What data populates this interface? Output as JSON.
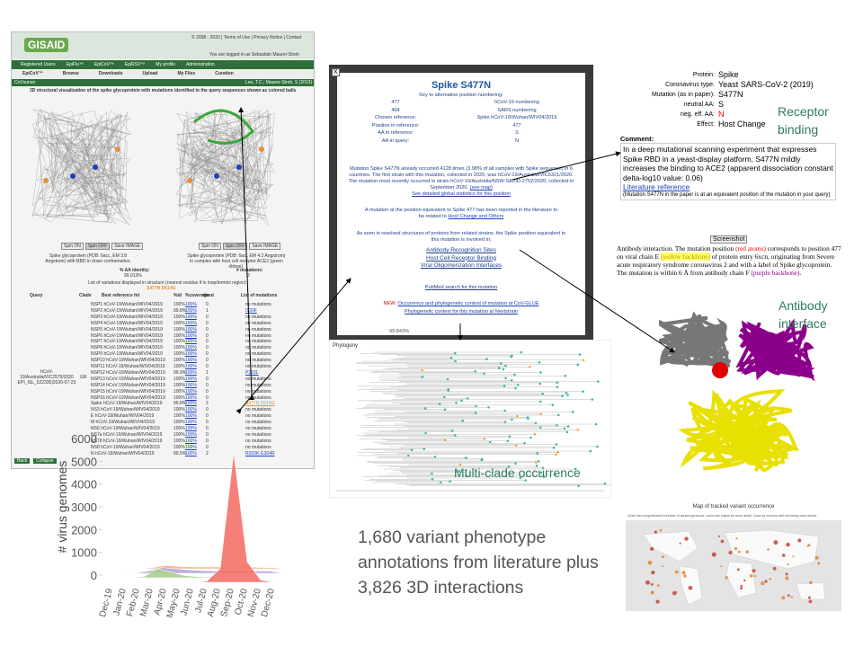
{
  "gisaid": {
    "logo": "GISAID",
    "toplinks": "© 2008 - 2020 | Terms of Use | Privacy Notice | Contact",
    "login": "You are logged in as Sebastian Maurer-Stroh",
    "nav": [
      "Registered Users",
      "EpiFlu™",
      "EpiCoV™",
      "EpiRSV™",
      "My profile",
      "Administration"
    ],
    "subnav": [
      "EpiCoV™",
      "Browse",
      "Downloads",
      "Upload",
      "My Files",
      "Curation"
    ],
    "app": "CoVsurver",
    "credit": "Lee, T.C.; Maurer-Stroh, S (2013)",
    "heading": "3D structural visualization of the spike glycoprotein with mutations identified in the query sequences shown as colored balls",
    "buttons": [
      "Spin ON",
      "Spin OFF",
      "Save IMAGE"
    ],
    "captions": [
      "Spike glycoprotein (PDB: 6acc, EM 3.8 Angstrom) with RBD in down conformation.",
      "Spike glycoprotein (PDB: 6acj, EM 4.2 Angstrom) in complex with host cell receptor ACE2 (green ribbon)."
    ],
    "identity_label": "% AA identity:",
    "identity": "99.913%",
    "mutations_label": "# mutations:",
    "mutations_count": "2",
    "variants_heading": "List of variations displayed in structure (nearest residue if in loop/termini region)",
    "variants": "S477N D614G",
    "columns": [
      "Query",
      "Clade",
      "Best reference hit",
      "%id",
      "%coverage",
      "#mut",
      "List of mutations"
    ],
    "query": "hCoV-19/Australia/VIC2575/2020 EPI_ISL_522335|2020-07-23",
    "clade": "GR",
    "rows": [
      [
        "NSP1 hCoV-19/Wuhan/WIV04/2019",
        "100%",
        "100%",
        "0",
        "no mutations"
      ],
      [
        "NSP2 hCoV-19/Wuhan/WIV04/2019",
        "99.8%",
        "100%",
        "1",
        "I120F"
      ],
      [
        "NSP3 hCoV-19/Wuhan/WIV04/2019",
        "100%",
        "100%",
        "0",
        "no mutations"
      ],
      [
        "NSP4 hCoV-19/Wuhan/WIV04/2019",
        "100%",
        "100%",
        "0",
        "no mutations"
      ],
      [
        "NSP5 hCoV-19/Wuhan/WIV04/2019",
        "100%",
        "100%",
        "0",
        "no mutations"
      ],
      [
        "NSP6 hCoV-19/Wuhan/WIV04/2019",
        "100%",
        "100%",
        "0",
        "no mutations"
      ],
      [
        "NSP7 hCoV-19/Wuhan/WIV04/2019",
        "100%",
        "100%",
        "0",
        "no mutations"
      ],
      [
        "NSP8 hCoV-19/Wuhan/WIV04/2019",
        "100%",
        "100%",
        "0",
        "no mutations"
      ],
      [
        "NSP9 hCoV-19/Wuhan/WIV04/2019",
        "100%",
        "100%",
        "0",
        "no mutations"
      ],
      [
        "NSP10 hCoV-19/Wuhan/WIV04/2019",
        "100%",
        "100%",
        "0",
        "no mutations"
      ],
      [
        "NSP11 hCoV-19/Wuhan/WIV04/2019",
        "100%",
        "100%",
        "0",
        "no mutations"
      ],
      [
        "NSP12 hCoV-19/Wuhan/WIV04/2019",
        "99.9%",
        "100%",
        "1",
        "P323L"
      ],
      [
        "NSP13 hCoV-19/Wuhan/WIV04/2019",
        "100%",
        "100%",
        "0",
        "no mutations"
      ],
      [
        "NSP14 hCoV-19/Wuhan/WIV04/2019",
        "100%",
        "100%",
        "0",
        "no mutations"
      ],
      [
        "NSP15 hCoV-19/Wuhan/WIV04/2019",
        "100%",
        "100%",
        "0",
        "no mutations"
      ],
      [
        "NSP16 hCoV-19/Wuhan/WIV04/2019",
        "100%",
        "100%",
        "0",
        "no mutations"
      ],
      [
        "Spike hCoV-19/Wuhan/WIV04/2019",
        "99.8%",
        "100%",
        "2",
        "S477N D614G"
      ],
      [
        "NS3 hCoV-19/Wuhan/WIV04/2019",
        "100%",
        "100%",
        "0",
        "no mutations"
      ],
      [
        "E hCoV-19/Wuhan/WIV04/2019",
        "100%",
        "100%",
        "0",
        "no mutations"
      ],
      [
        "M hCoV-19/Wuhan/WIV04/2019",
        "100%",
        "100%",
        "0",
        "no mutations"
      ],
      [
        "NS6 hCoV-19/Wuhan/WIV04/2019",
        "100%",
        "100%",
        "0",
        "no mutations"
      ],
      [
        "NS7a hCoV-19/Wuhan/WIV04/2019",
        "100%",
        "100%",
        "0",
        "no mutations"
      ],
      [
        "NS7b hCoV-19/Wuhan/WIV04/2019",
        "100%",
        "100%",
        "0",
        "no mutations"
      ],
      [
        "NS8 hCoV-19/Wuhan/WIV04/2019",
        "100%",
        "100%",
        "0",
        "no mutations"
      ],
      [
        "N hCoV-19/Wuhan/WIV04/2019",
        "99.5%",
        "100%",
        "2",
        "R203K G204R"
      ]
    ],
    "back": "Back",
    "collapse": "Collapse"
  },
  "popup": {
    "close": "X",
    "title": "Spike S477N",
    "key_heading": "Key to alternative position numbering:",
    "numbering": [
      [
        "477",
        "hCoV-19 numbering"
      ],
      [
        "464",
        "SARS numbering"
      ]
    ],
    "fields": [
      [
        "Chosen reference:",
        "Spike hCoV-19/Wuhan/WIV04/2019"
      ],
      [
        "Position in reference:",
        "477"
      ],
      [
        "AA in reference:",
        "S"
      ],
      [
        "AA in query:",
        "N"
      ]
    ],
    "occurrence": "Mutation Spike S477N already occurred 4128 times (3.98% of all samples with Spike sequence) in 6 countries. The first strain with this mutation, collected in 2020, was hCoV-19/Australia/VIC5321/2020. The mutation most recently occurred in strain hCoV-19/Australia/NSW-SAVID-2752/2020, collected in September 2020.",
    "see_map": "(see map)",
    "stats_link": "See detailed global statistics for this position",
    "literature": "A mutation at the position equivalent to Spike 477 has been reported in the literature to be related to",
    "lit_link": "Host Change and Others",
    "structures": "As seen in resolved structures of proteins from related strains, the Spike position equivalent to this mutation is involved in:",
    "structure_links": [
      "Antibody Recognition Sites",
      "Host Cell Receptor Binding",
      "Viral Oligomerization Interfaces"
    ],
    "pubmed": "PubMed search for this mutation",
    "new": "NEW:",
    "glue": "Occurrence and phylogenetic context of mutation at CoV-GLUE",
    "nextstrain": "Phylogenetic context for this mutation at Nextstrain",
    "under": "99.843%"
  },
  "annotation": {
    "fields": [
      [
        "Protein:",
        "Spike"
      ],
      [
        "Coronavirus type:",
        "Yeast SARS-CoV-2 (2019)"
      ],
      [
        "Mutation (as in paper):",
        "S477N"
      ],
      [
        "neutral AA:",
        "S"
      ],
      [
        "neg. eff. AA:",
        "N"
      ],
      [
        "Effect:",
        "Host Change"
      ]
    ],
    "comment_heading": "Comment:",
    "comment": "In a deep mutational scanning experiment that expresses Spike RBD in a yeast-display platform, S477N mildly increases the binding to ACE2 (apparent dissociation constant delta-log10 value: 0.06)",
    "ref": "Literature reference",
    "note": "(Mutation S477N in the paper is at an equivalent position of the mutation in your query)"
  },
  "antibody": {
    "button": "Screenshot",
    "text": [
      "Antibody interaction. The mutation position ",
      "(red atoms)",
      " corresponds to position 477 on viral chain E ",
      "(yellow backbone)",
      " of protein entry 6xcn, originating from Severe acute respiratory syndrome coronavirus 2 and with a label of Spike glycoprotein. The mutation is within 6 Å from antibody chain F ",
      "(purple backbone)",
      "."
    ]
  },
  "labels": {
    "receptor": "Receptor binding",
    "antibody": "Antibody interface",
    "clade": "Multi-clade occurrence",
    "summary": "1,680 variant phenotype annotations from literature plus 3,826 3D interactions"
  },
  "phylogeny": {
    "title": "Phylogeny"
  },
  "map": {
    "title": "Map of tracked variant occurrence",
    "subtitle": "Circle size proportional to number of variant genomes, zoom into region for more detail. Color by recency with red being most recent."
  },
  "chart_data": {
    "type": "area3d",
    "y_label": "# virus genomes",
    "categories": [
      "Dec-19",
      "Jan-20",
      "Feb-20",
      "Mar-20",
      "Apr-20",
      "May-20",
      "Jun-20",
      "Jul-20",
      "Aug-20",
      "Sep-20",
      "Oct-20",
      "Nov-20",
      "Dec-20"
    ],
    "ylim": [
      0,
      6000
    ],
    "yticks": [
      0,
      1000,
      2000,
      3000,
      4000,
      5000,
      6000
    ],
    "series": [
      {
        "color": "#f4736b",
        "values": [
          0,
          0,
          0,
          0,
          0,
          0,
          0,
          50,
          600,
          5700,
          900,
          100,
          0
        ]
      },
      {
        "color": "#a9d18e",
        "values": [
          0,
          0,
          50,
          400,
          250,
          100,
          50,
          30,
          20,
          20,
          20,
          20,
          0
        ]
      },
      {
        "color": "#b4a7d6",
        "values": [
          0,
          10,
          100,
          250,
          200,
          150,
          120,
          100,
          100,
          100,
          100,
          100,
          0
        ]
      },
      {
        "color": "#f4b183",
        "values": [
          0,
          0,
          50,
          150,
          100,
          80,
          80,
          80,
          80,
          80,
          60,
          50,
          0
        ]
      }
    ]
  }
}
